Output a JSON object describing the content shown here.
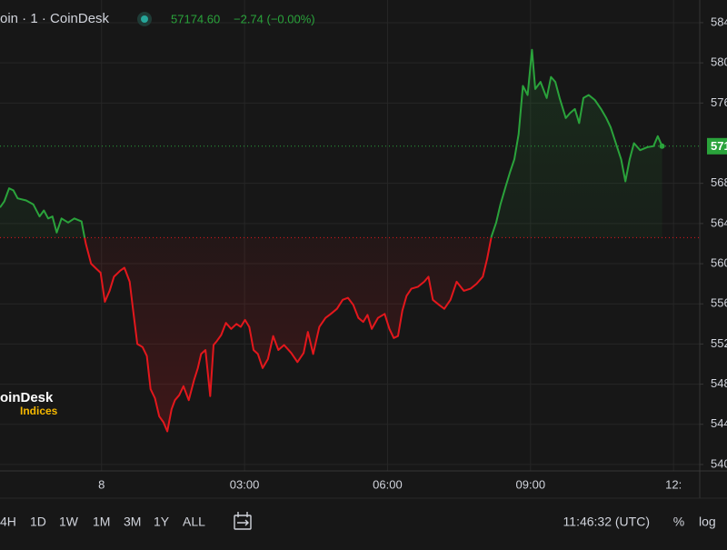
{
  "header": {
    "title": "oin · 1 · CoinDesk",
    "price": "57174.60",
    "change": "−2.74 (−0.00%)"
  },
  "watermark": {
    "brand": "oinDesk",
    "sub": "Indices"
  },
  "toolbar": {
    "ranges": [
      "4H",
      "1D",
      "1W",
      "1M",
      "3M",
      "1Y",
      "ALL"
    ],
    "time": "11:46:32 (UTC)",
    "percent": "%",
    "log": "log"
  },
  "chart_data": {
    "type": "baseline",
    "x": [
      -2.13,
      -2.04,
      -1.94,
      -1.85,
      -1.76,
      -1.58,
      -1.43,
      -1.3,
      -1.21,
      -1.12,
      -1.03,
      -0.94,
      -0.84,
      -0.7,
      -0.57,
      -0.42,
      -0.33,
      -0.22,
      -0.11,
      -0.02,
      0.07,
      0.17,
      0.26,
      0.39,
      0.48,
      0.59,
      0.66,
      0.75,
      0.86,
      0.95,
      1.03,
      1.12,
      1.21,
      1.3,
      1.38,
      1.47,
      1.54,
      1.63,
      1.72,
      1.83,
      1.94,
      2.02,
      2.09,
      2.18,
      2.28,
      2.35,
      2.42,
      2.51,
      2.61,
      2.72,
      2.83,
      2.92,
      3.01,
      3.1,
      3.19,
      3.28,
      3.38,
      3.49,
      3.6,
      3.71,
      3.83,
      3.98,
      4.11,
      4.24,
      4.33,
      4.44,
      4.57,
      4.7,
      4.81,
      4.94,
      5.06,
      5.17,
      5.28,
      5.39,
      5.49,
      5.58,
      5.67,
      5.8,
      5.94,
      6.04,
      6.13,
      6.22,
      6.31,
      6.4,
      6.5,
      6.64,
      6.77,
      6.86,
      6.95,
      7.08,
      7.19,
      7.32,
      7.45,
      7.6,
      7.74,
      7.87,
      8.0,
      8.09,
      8.18,
      8.28,
      8.37,
      8.48,
      8.57,
      8.66,
      8.75,
      8.84,
      8.94,
      9.03,
      9.1,
      9.21,
      9.34,
      9.43,
      9.52,
      9.61,
      9.74,
      9.83,
      9.93,
      10.02,
      10.11,
      10.22,
      10.35,
      10.48,
      10.59,
      10.68,
      10.79,
      10.9,
      10.99,
      11.08,
      11.17,
      11.3,
      11.45,
      11.58,
      11.67,
      11.76
    ],
    "values": [
      56560,
      56620,
      56750,
      56730,
      56650,
      56630,
      56590,
      56470,
      56530,
      56450,
      56470,
      56310,
      56450,
      56410,
      56450,
      56420,
      56200,
      56000,
      55950,
      55910,
      55620,
      55730,
      55870,
      55930,
      55960,
      55820,
      55550,
      55200,
      55170,
      55080,
      54750,
      54660,
      54480,
      54420,
      54330,
      54550,
      54640,
      54690,
      54780,
      54640,
      54840,
      54960,
      55100,
      55140,
      54680,
      55190,
      55230,
      55290,
      55410,
      55350,
      55400,
      55370,
      55440,
      55370,
      55140,
      55100,
      54960,
      55050,
      55280,
      55140,
      55190,
      55110,
      55020,
      55110,
      55320,
      55100,
      55370,
      55460,
      55500,
      55550,
      55640,
      55660,
      55590,
      55460,
      55420,
      55490,
      55350,
      55460,
      55500,
      55350,
      55260,
      55280,
      55530,
      55680,
      55750,
      55770,
      55820,
      55870,
      55640,
      55590,
      55550,
      55640,
      55820,
      55730,
      55750,
      55800,
      55870,
      56050,
      56270,
      56410,
      56590,
      56770,
      56910,
      57040,
      57290,
      57770,
      57680,
      58130,
      57740,
      57810,
      57650,
      57860,
      57810,
      57650,
      57450,
      57500,
      57540,
      57400,
      57650,
      57680,
      57630,
      57540,
      57450,
      57360,
      57200,
      57040,
      56820,
      57040,
      57200,
      57130,
      57160,
      57170,
      57270,
      57170
    ],
    "baseline": 56260,
    "color_up": "#2aa33b",
    "color_down": "#e3171c",
    "price_label": "571",
    "xlim": [
      -2.13,
      12.55
    ],
    "ylim": [
      53936,
      58626
    ],
    "xticks": [
      {
        "value": 0,
        "label": "8"
      },
      {
        "value": 3,
        "label": "03:00"
      },
      {
        "value": 6,
        "label": "06:00"
      },
      {
        "value": 9,
        "label": "09:00"
      },
      {
        "value": 12,
        "label": "12:"
      }
    ],
    "yticks": [
      {
        "value": 58400,
        "label": "584"
      },
      {
        "value": 58000,
        "label": "580"
      },
      {
        "value": 57600,
        "label": "576"
      },
      {
        "value": 56800,
        "label": "568"
      },
      {
        "value": 56400,
        "label": "564"
      },
      {
        "value": 56000,
        "label": "560"
      },
      {
        "value": 55600,
        "label": "556"
      },
      {
        "value": 55200,
        "label": "552"
      },
      {
        "value": 54800,
        "label": "548"
      },
      {
        "value": 54400,
        "label": "544"
      },
      {
        "value": 54000,
        "label": "540"
      }
    ],
    "grid": true
  }
}
